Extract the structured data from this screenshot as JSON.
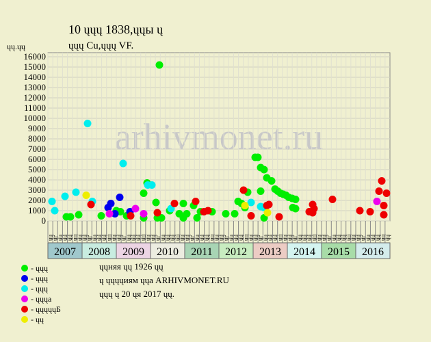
{
  "chart_data": {
    "type": "scatter",
    "title": "10 ųųų 1838,ųųы ų",
    "subtitle": "ųųų Cu,ųųų VF.",
    "y_label": "ųų.ųų",
    "watermark": "arhivmonet.ru",
    "xlim": [
      2007,
      2017
    ],
    "ylim": [
      0,
      16400
    ],
    "yticks": [
      0,
      1000,
      2000,
      3000,
      4000,
      5000,
      6000,
      7000,
      8000,
      9000,
      10000,
      11000,
      12000,
      13000,
      14000,
      15000,
      16000
    ],
    "grid": true,
    "years": [
      "2007",
      "2008",
      "2009",
      "2010",
      "2011",
      "2012",
      "2013",
      "2014",
      "2015",
      "2016"
    ],
    "year_colors": [
      "#a0c8cc",
      "#c8ece0",
      "#ecd4e4",
      "#ecece0",
      "#a8d4b4",
      "#c8ecc0",
      "#ecccc4",
      "#d4f4f0",
      "#a8dca8",
      "#d4ecec"
    ],
    "column_labels": [
      "ųų",
      "ųг",
      "ųų",
      "ųų",
      "ųų",
      "ųц",
      "ųų"
    ],
    "series": [
      {
        "name": "- ųųų",
        "color": "#00ee00",
        "x": [
          2007.54,
          2007.66,
          2007.9,
          2008.56,
          2009.0,
          2009.12,
          2009.3,
          2009.8,
          2009.9,
          2009.8,
          2010.16,
          2010.26,
          2010.2,
          2010.32,
          2010.56,
          2010.84,
          2010.96,
          2010.96,
          2011.06,
          2011.26,
          2011.36,
          2011.46,
          2011.8,
          2012.2,
          2012.46,
          2012.56,
          2012.66,
          2012.76,
          2012.84,
          2013.06,
          2013.14,
          2013.22,
          2013.32,
          2013.4,
          2013.54,
          2013.22,
          2013.32,
          2013.64,
          2013.72,
          2013.8,
          2013.88,
          2013.96,
          2014.04,
          2014.14,
          2014.24,
          2014.16,
          2014.24
        ],
        "values": [
          400,
          400,
          600,
          500,
          1000,
          900,
          500,
          2700,
          3700,
          300,
          1800,
          15200,
          300,
          300,
          1000,
          700,
          1700,
          300,
          700,
          1500,
          300,
          900,
          900,
          700,
          700,
          1900,
          1700,
          1300,
          2800,
          6200,
          6200,
          5200,
          5000,
          4200,
          3900,
          2900,
          300,
          3100,
          2900,
          2700,
          2600,
          2500,
          2300,
          2200,
          2100,
          1300,
          1200
        ]
      },
      {
        "name": "- ųųų",
        "color": "#0000ee",
        "x": [
          2008.76,
          2008.84,
          2008.96,
          2009.1,
          2009.4
        ],
        "values": [
          1300,
          1700,
          700,
          2300,
          900
        ]
      },
      {
        "name": "- ųųų",
        "color": "#00eeee",
        "x": [
          2007.12,
          2007.2,
          2007.5,
          2007.82,
          2008.16,
          2008.3,
          2009.2,
          2009.92,
          2010.04,
          2010.6,
          2012.94,
          2013.22,
          2013.32
        ],
        "values": [
          1900,
          1000,
          2400,
          2800,
          9500,
          1900,
          5600,
          3500,
          3500,
          1200,
          1800,
          1400,
          1300
        ]
      },
      {
        "name": "- ųųųа",
        "color": "#ee00ee",
        "x": [
          2008.8,
          2009.56,
          2009.8,
          2016.62
        ],
        "values": [
          700,
          1200,
          700,
          1900
        ]
      },
      {
        "name": "- ųųųųųБ",
        "color": "#ee0000",
        "x": [
          2008.26,
          2009.42,
          2010.2,
          2010.7,
          2011.32,
          2011.56,
          2011.68,
          2012.72,
          2012.94,
          2013.4,
          2013.46,
          2013.76,
          2014.64,
          2014.74,
          2014.78,
          2014.74,
          2015.32,
          2016.12,
          2016.42,
          2016.68,
          2016.76,
          2016.82,
          2016.82,
          2016.9
        ],
        "values": [
          1600,
          500,
          800,
          1700,
          1900,
          900,
          1000,
          3000,
          500,
          1500,
          1600,
          400,
          900,
          1600,
          1200,
          800,
          2100,
          1000,
          900,
          2900,
          3900,
          1500,
          600,
          2700
        ]
      },
      {
        "name": "- ųų",
        "color": "#eeee00",
        "x": [
          2008.12,
          2012.76,
          2013.42
        ],
        "values": [
          2500,
          1500,
          800
        ]
      }
    ],
    "notes": [
      "ųųняя ųų 1926 ųų",
      "ų ųųųųиям ųųа ARHIVMONET.RU",
      "ųųų ų 20 ųя 2017 ųų."
    ]
  }
}
